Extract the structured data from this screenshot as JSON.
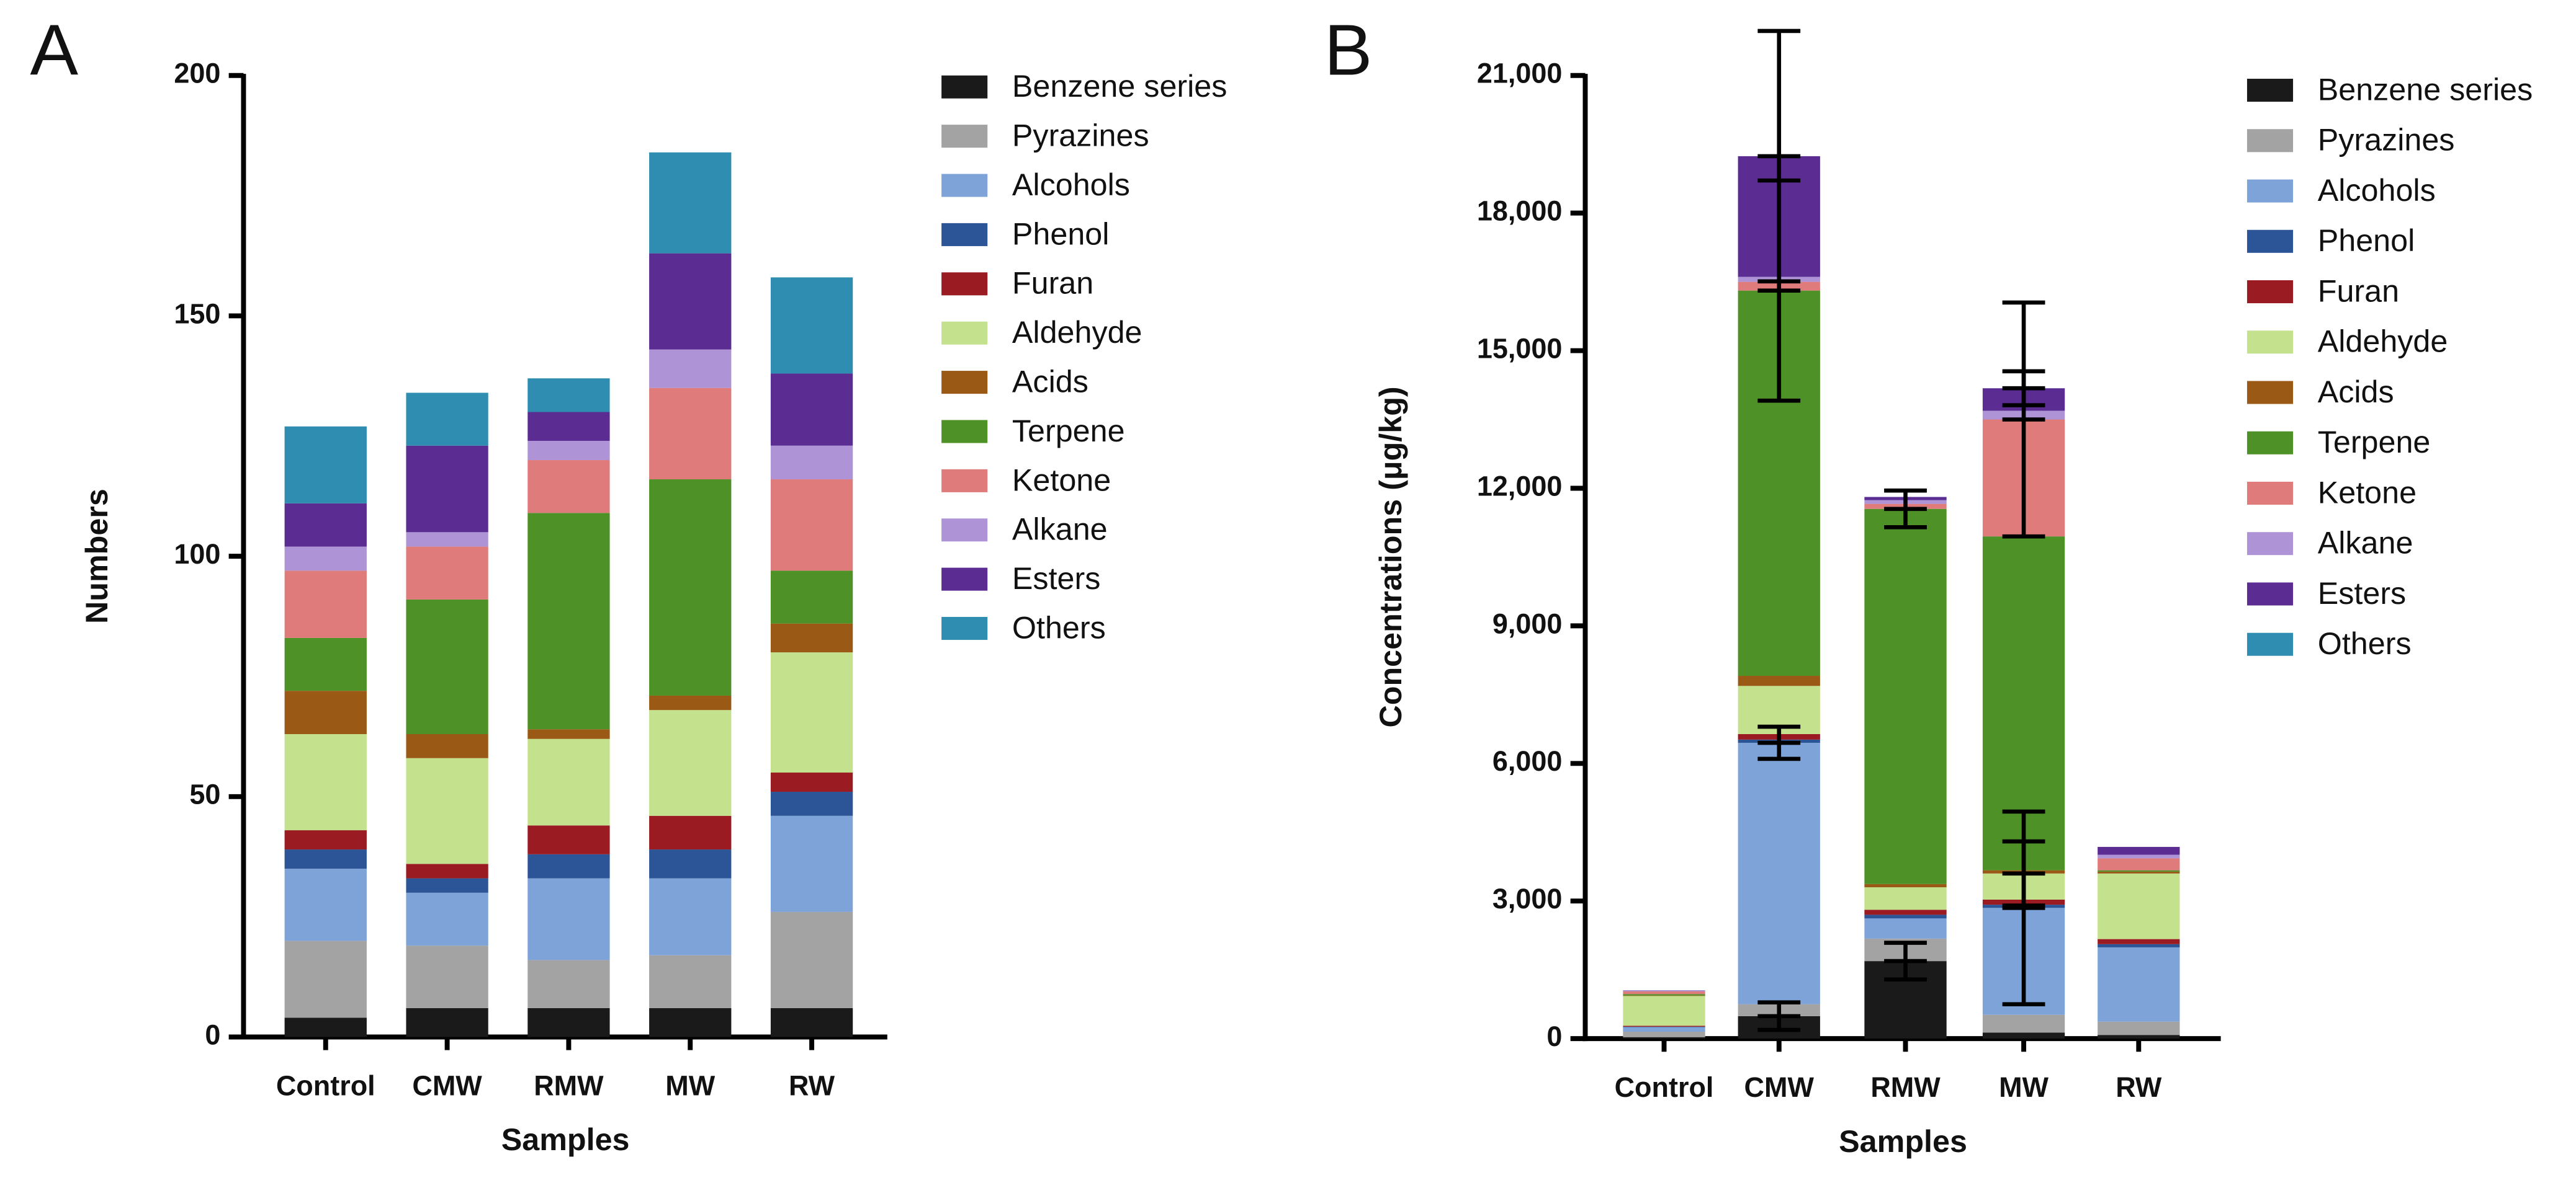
{
  "chart_data": [
    {
      "type": "stacked-bar",
      "panel": "A",
      "ylabel": "Numbers",
      "xlabel": "Samples",
      "categories": [
        "Control",
        "CMW",
        "RMW",
        "MW",
        "RW"
      ],
      "ylim": [
        0,
        200
      ],
      "yticks": [
        0,
        50,
        100,
        150,
        200
      ],
      "series": [
        {
          "name": "Benzene series",
          "color": "#1a1a1a",
          "values": [
            4,
            6,
            6,
            6,
            6
          ]
        },
        {
          "name": "Pyrazines",
          "color": "#a3a3a3",
          "values": [
            16,
            13,
            10,
            11,
            20
          ]
        },
        {
          "name": "Alcohols",
          "color": "#7ea3d8",
          "values": [
            15,
            11,
            17,
            16,
            20
          ]
        },
        {
          "name": "Phenol",
          "color": "#2c5597",
          "values": [
            4,
            3,
            5,
            6,
            5
          ]
        },
        {
          "name": "Furan",
          "color": "#9b1b23",
          "values": [
            4,
            3,
            6,
            7,
            4
          ]
        },
        {
          "name": "Aldehyde",
          "color": "#c4e18e",
          "values": [
            20,
            22,
            18,
            22,
            25
          ]
        },
        {
          "name": "Acids",
          "color": "#9a5a16",
          "values": [
            9,
            5,
            2,
            3,
            6
          ]
        },
        {
          "name": "Terpene",
          "color": "#4e9126",
          "values": [
            11,
            28,
            45,
            45,
            11
          ]
        },
        {
          "name": "Ketone",
          "color": "#e07b7b",
          "values": [
            14,
            11,
            11,
            19,
            19
          ]
        },
        {
          "name": "Alkane",
          "color": "#ae94d6",
          "values": [
            5,
            3,
            4,
            8,
            7
          ]
        },
        {
          "name": "Esters",
          "color": "#5b2d93",
          "values": [
            9,
            18,
            6,
            20,
            15
          ]
        },
        {
          "name": "Others",
          "color": "#2f8db1",
          "values": [
            16,
            11,
            7,
            21,
            20
          ]
        }
      ]
    },
    {
      "type": "stacked-bar",
      "panel": "B",
      "ylabel": "Concentrations (μg/kg)",
      "xlabel": "Samples",
      "categories": [
        "Control",
        "CMW",
        "RMW",
        "MW",
        "RW"
      ],
      "ylim": [
        0,
        21000
      ],
      "yticks": [
        0,
        {
          "value": 3000,
          "label": "3,000"
        },
        {
          "value": 6000,
          "label": "6,000"
        },
        {
          "value": 9000,
          "label": "9,000"
        },
        {
          "value": 12000,
          "label": "12,000"
        },
        {
          "value": 15000,
          "label": "15,000"
        },
        {
          "value": 18000,
          "label": "18,000"
        },
        {
          "value": 21000,
          "label": "21,000"
        }
      ],
      "series": [
        {
          "name": "Benzene series",
          "color": "#1a1a1a",
          "values": [
            30,
            490,
            1690,
            130,
            80
          ],
          "errors": [
            null,
            300,
            400,
            null,
            null
          ]
        },
        {
          "name": "Pyrazines",
          "color": "#a3a3a3",
          "values": [
            120,
            260,
            490,
            390,
            290
          ],
          "errors": [
            null,
            null,
            null,
            null,
            null
          ]
        },
        {
          "name": "Alcohols",
          "color": "#7ea3d8",
          "values": [
            100,
            5700,
            440,
            2330,
            1620
          ],
          "errors": [
            null,
            350,
            null,
            2100,
            null
          ]
        },
        {
          "name": "Phenol",
          "color": "#2c5597",
          "values": [
            10,
            70,
            80,
            70,
            70
          ],
          "errors": [
            null,
            null,
            null,
            null,
            null
          ]
        },
        {
          "name": "Furan",
          "color": "#9b1b23",
          "values": [
            20,
            120,
            110,
            110,
            110
          ],
          "errors": [
            null,
            null,
            null,
            null,
            null
          ]
        },
        {
          "name": "Aldehyde",
          "color": "#c4e18e",
          "values": [
            650,
            1050,
            490,
            570,
            1430
          ],
          "errors": [
            null,
            null,
            null,
            700,
            null
          ]
        },
        {
          "name": "Acids",
          "color": "#9a5a16",
          "values": [
            10,
            220,
            70,
            70,
            40
          ],
          "errors": [
            null,
            null,
            null,
            null,
            null
          ]
        },
        {
          "name": "Terpene",
          "color": "#4e9126",
          "values": [
            30,
            8400,
            8180,
            7280,
            30
          ],
          "errors": [
            null,
            2400,
            400,
            null,
            null
          ]
        },
        {
          "name": "Ketone",
          "color": "#e07b7b",
          "values": [
            60,
            190,
            110,
            2550,
            260
          ],
          "errors": [
            null,
            null,
            null,
            2550,
            null
          ]
        },
        {
          "name": "Alkane",
          "color": "#ae94d6",
          "values": [
            10,
            110,
            80,
            190,
            80
          ],
          "errors": [
            null,
            null,
            null,
            null,
            null
          ]
        },
        {
          "name": "Esters",
          "color": "#5b2d93",
          "values": [
            10,
            2630,
            70,
            490,
            170
          ],
          "errors": [
            null,
            2730,
            null,
            370,
            null
          ]
        },
        {
          "name": "Others",
          "color": "#2f8db1",
          "values": [
            0,
            0,
            0,
            0,
            0
          ],
          "errors": [
            null,
            null,
            null,
            null,
            null
          ]
        }
      ]
    }
  ]
}
